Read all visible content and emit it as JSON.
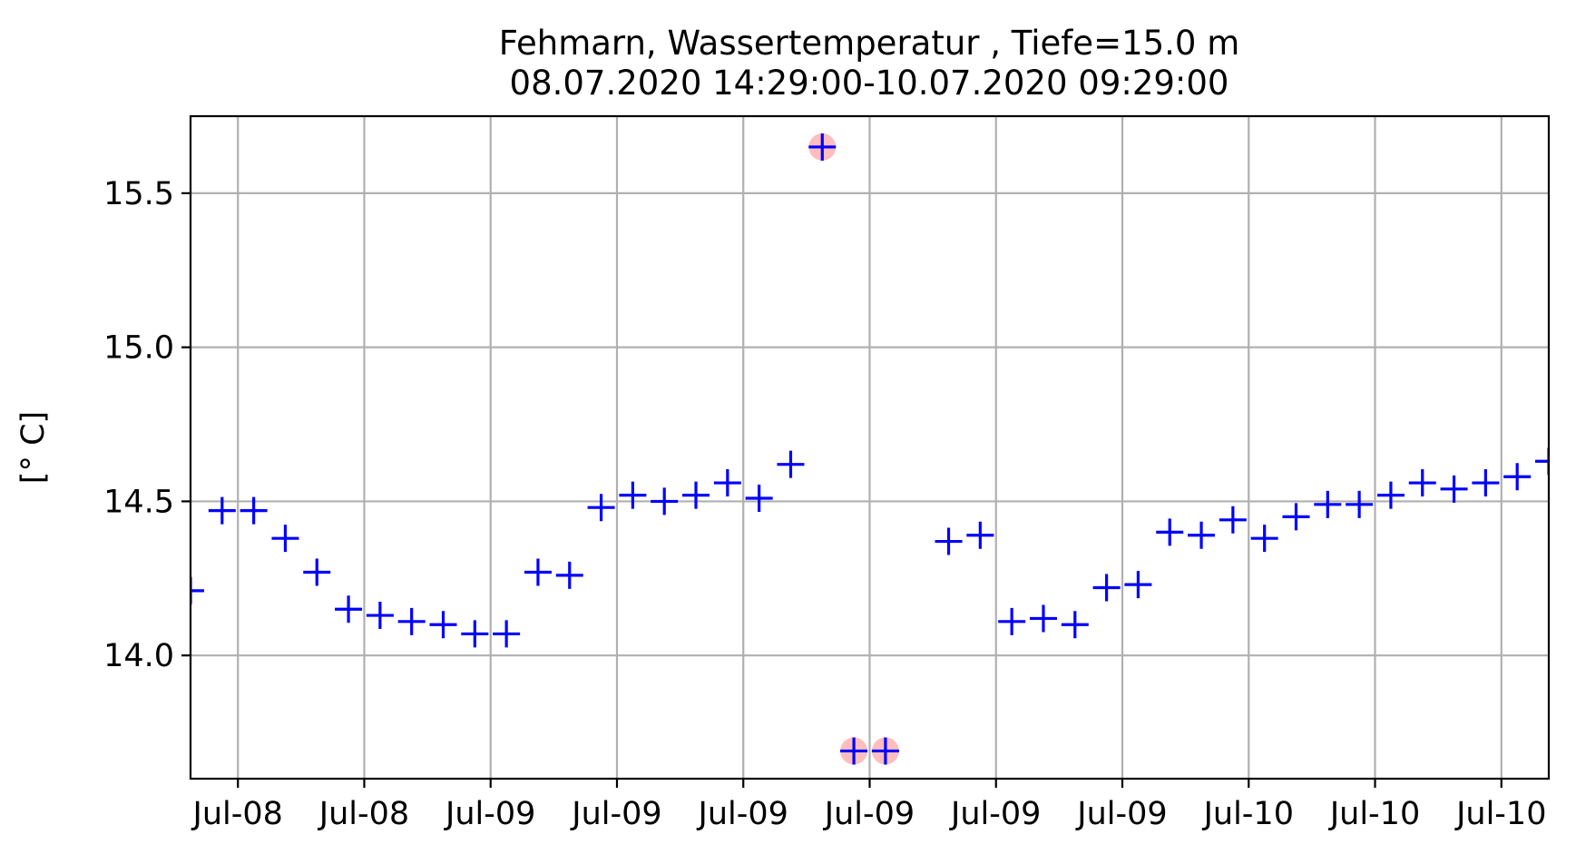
{
  "chart_data": {
    "type": "scatter",
    "title_line1": "Fehmarn, Wassertemperatur , Tiefe=15.0 m",
    "title_line2": "08.07.2020 14:29:00-10.07.2020 09:29:00",
    "ylabel": "[° C]",
    "xlabel": "",
    "x_unit": "hours since 08.07.2020 14:29",
    "xlim": [
      0,
      43.0
    ],
    "ylim": [
      13.6,
      15.75
    ],
    "yticks": [
      14.0,
      14.5,
      15.0,
      15.5
    ],
    "ytick_labels": [
      "14.0",
      "14.5",
      "15.0",
      "15.5"
    ],
    "xticks": [
      1.5,
      5.5,
      9.5,
      13.5,
      17.5,
      21.5,
      25.5,
      29.5,
      33.5,
      37.5,
      41.5
    ],
    "xtick_labels": [
      "Jul-08",
      "Jul-08",
      "Jul-09",
      "Jul-09",
      "Jul-09",
      "Jul-09",
      "Jul-09",
      "Jul-09",
      "Jul-10",
      "Jul-10",
      "Jul-10"
    ],
    "grid": true,
    "marker": "+",
    "color": "#0000ff",
    "flag_color": "#ff9999",
    "series": [
      {
        "name": "Wassertemperatur",
        "x": [
          0,
          1,
          2,
          3,
          4,
          5,
          6,
          7,
          8,
          9,
          10,
          11,
          12,
          13,
          14,
          15,
          16,
          17,
          18,
          19,
          20,
          21,
          22,
          24,
          25,
          26,
          27,
          28,
          29,
          30,
          31,
          32,
          33,
          34,
          35,
          36,
          37,
          38,
          39,
          40,
          41,
          42,
          43
        ],
        "y": [
          14.21,
          14.47,
          14.47,
          14.38,
          14.27,
          14.15,
          14.13,
          14.11,
          14.1,
          14.07,
          14.07,
          14.27,
          14.26,
          14.48,
          14.52,
          14.5,
          14.52,
          14.56,
          14.51,
          14.62,
          15.65,
          13.69,
          13.69,
          14.37,
          14.39,
          14.11,
          14.12,
          14.1,
          14.22,
          14.23,
          14.4,
          14.39,
          14.44,
          14.38,
          14.45,
          14.49,
          14.49,
          14.52,
          14.56,
          14.54,
          14.56,
          14.58,
          14.63
        ]
      }
    ],
    "flagged_points": [
      {
        "x": 20,
        "y": 15.65
      },
      {
        "x": 21,
        "y": 13.69
      },
      {
        "x": 22,
        "y": 13.69
      }
    ]
  }
}
